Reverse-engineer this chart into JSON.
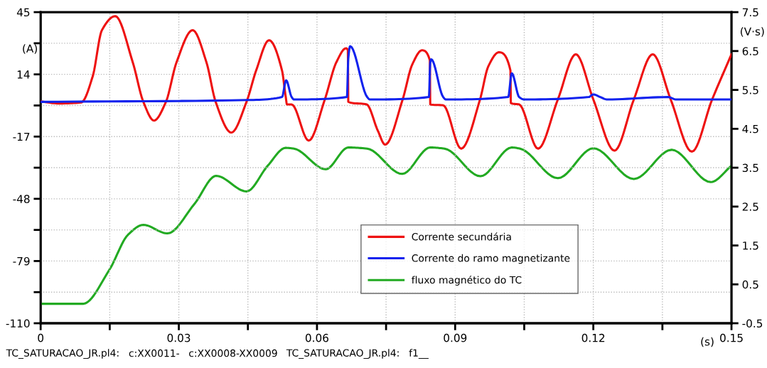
{
  "chart_data": {
    "type": "line",
    "xlabel": "(s)",
    "ylabel": "(A)",
    "y2label": "(V·s)",
    "xlim": [
      0,
      0.15
    ],
    "xticks": [
      0,
      {
        "value": 0.015,
        "label": null
      },
      0.03,
      {
        "value": 0.045,
        "label": null
      },
      0.06,
      {
        "value": 0.075,
        "label": null
      },
      0.09,
      {
        "value": 0.105,
        "label": null
      },
      0.12,
      {
        "value": 0.135,
        "label": null
      },
      0.15
    ],
    "ylim": [
      -110,
      45
    ],
    "yticks": [
      -110,
      {
        "value": -94.5,
        "label": null
      },
      -79,
      {
        "value": -63.5,
        "label": null
      },
      -48,
      {
        "value": -32.5,
        "label": null
      },
      -17,
      {
        "value": -1.5,
        "label": null
      },
      14,
      {
        "value": 29.5,
        "label": null
      },
      45
    ],
    "y2lim": [
      -0.5,
      7.5
    ],
    "y2ticks": [
      -0.5,
      0.5,
      1.5,
      2.5,
      3.5,
      4.5,
      5.5,
      6.5,
      7.5
    ],
    "grid": true,
    "legend": "bottom right",
    "line_style": "solid",
    "annotations": [
      "TC_SATURACAO_JR.pl4:",
      "c:XX0011-",
      "c:XX0008-XX0009",
      "TC_SATURACAO_JR.pl4:",
      "f1__"
    ],
    "series": [
      {
        "name": "Corrente secundária",
        "color": "#ee1111",
        "x": [
          0,
          0.004,
          0.0088,
          0.0113,
          0.0133,
          0.0162,
          0.02,
          0.0223,
          0.0246,
          0.0272,
          0.0295,
          0.033,
          0.036,
          0.038,
          0.0414,
          0.0447,
          0.0468,
          0.0496,
          0.0524,
          0.0532,
          0.0535,
          0.0545,
          0.0582,
          0.0617,
          0.0642,
          0.0663,
          0.0667,
          0.0668,
          0.0708,
          0.0732,
          0.0748,
          0.0786,
          0.0807,
          0.0828,
          0.0845,
          0.0846,
          0.0874,
          0.0913,
          0.0954,
          0.0972,
          0.0995,
          0.102,
          0.1021,
          0.1039,
          0.108,
          0.1123,
          0.1162,
          0.12,
          0.1246,
          0.1288,
          0.1329,
          0.1368,
          0.1414,
          0.1458,
          0.15
        ],
        "values": [
          0.5,
          -0.5,
          0,
          13,
          36,
          43,
          20,
          0.3,
          -9,
          0.3,
          20,
          36,
          20,
          0.3,
          -15,
          0.3,
          16,
          31,
          16,
          3,
          -1,
          -1,
          -19,
          1.5,
          20,
          27,
          26,
          0.3,
          -1,
          -14,
          -21,
          1.5,
          19,
          26,
          21,
          -1,
          -1.4,
          -23,
          1.5,
          18,
          25,
          16,
          -0.3,
          -1,
          -23,
          1.5,
          24,
          1.5,
          -24,
          1.5,
          24,
          1.5,
          -24.5,
          1.5,
          24
        ]
      },
      {
        "name": "Corrente do ramo magnetizante",
        "color": "#1122ee",
        "x": [
          0,
          0.045,
          0.0524,
          0.0533,
          0.0545,
          0.055,
          0.0665,
          0.0668,
          0.0672,
          0.0709,
          0.0715,
          0.0843,
          0.0846,
          0.0848,
          0.0874,
          0.088,
          0.1015,
          0.1023,
          0.1039,
          0.105,
          0.119,
          0.12,
          0.1215,
          0.123,
          0.1362,
          0.138,
          0.15
        ],
        "values": [
          0.3,
          1.2,
          2.7,
          11,
          2.7,
          1.5,
          2.7,
          22,
          28,
          2.7,
          1.5,
          2.7,
          20,
          21.5,
          2.7,
          1.5,
          2.7,
          14.5,
          2.7,
          1.5,
          2.7,
          4,
          2.7,
          1.5,
          2.7,
          1.5,
          1.5
        ]
      },
      {
        "name": "fluxo magnético do TC",
        "color": "#22aa22",
        "axis": "y2",
        "x": [
          0,
          0.0092,
          0.0149,
          0.019,
          0.0223,
          0.0275,
          0.0334,
          0.0381,
          0.0447,
          0.0493,
          0.0532,
          0.055,
          0.0619,
          0.0668,
          0.0709,
          0.0785,
          0.0846,
          0.0877,
          0.0955,
          0.1023,
          0.1041,
          0.1123,
          0.12,
          0.1288,
          0.137,
          0.1455,
          0.15
        ],
        "values": [
          0,
          0,
          0.87,
          1.78,
          2.03,
          1.81,
          2.57,
          3.29,
          2.89,
          3.55,
          4.01,
          3.99,
          3.46,
          4.02,
          3.99,
          3.34,
          4.02,
          3.99,
          3.28,
          4.02,
          3.99,
          3.23,
          4.0,
          3.21,
          3.96,
          3.13,
          3.55
        ]
      }
    ]
  }
}
